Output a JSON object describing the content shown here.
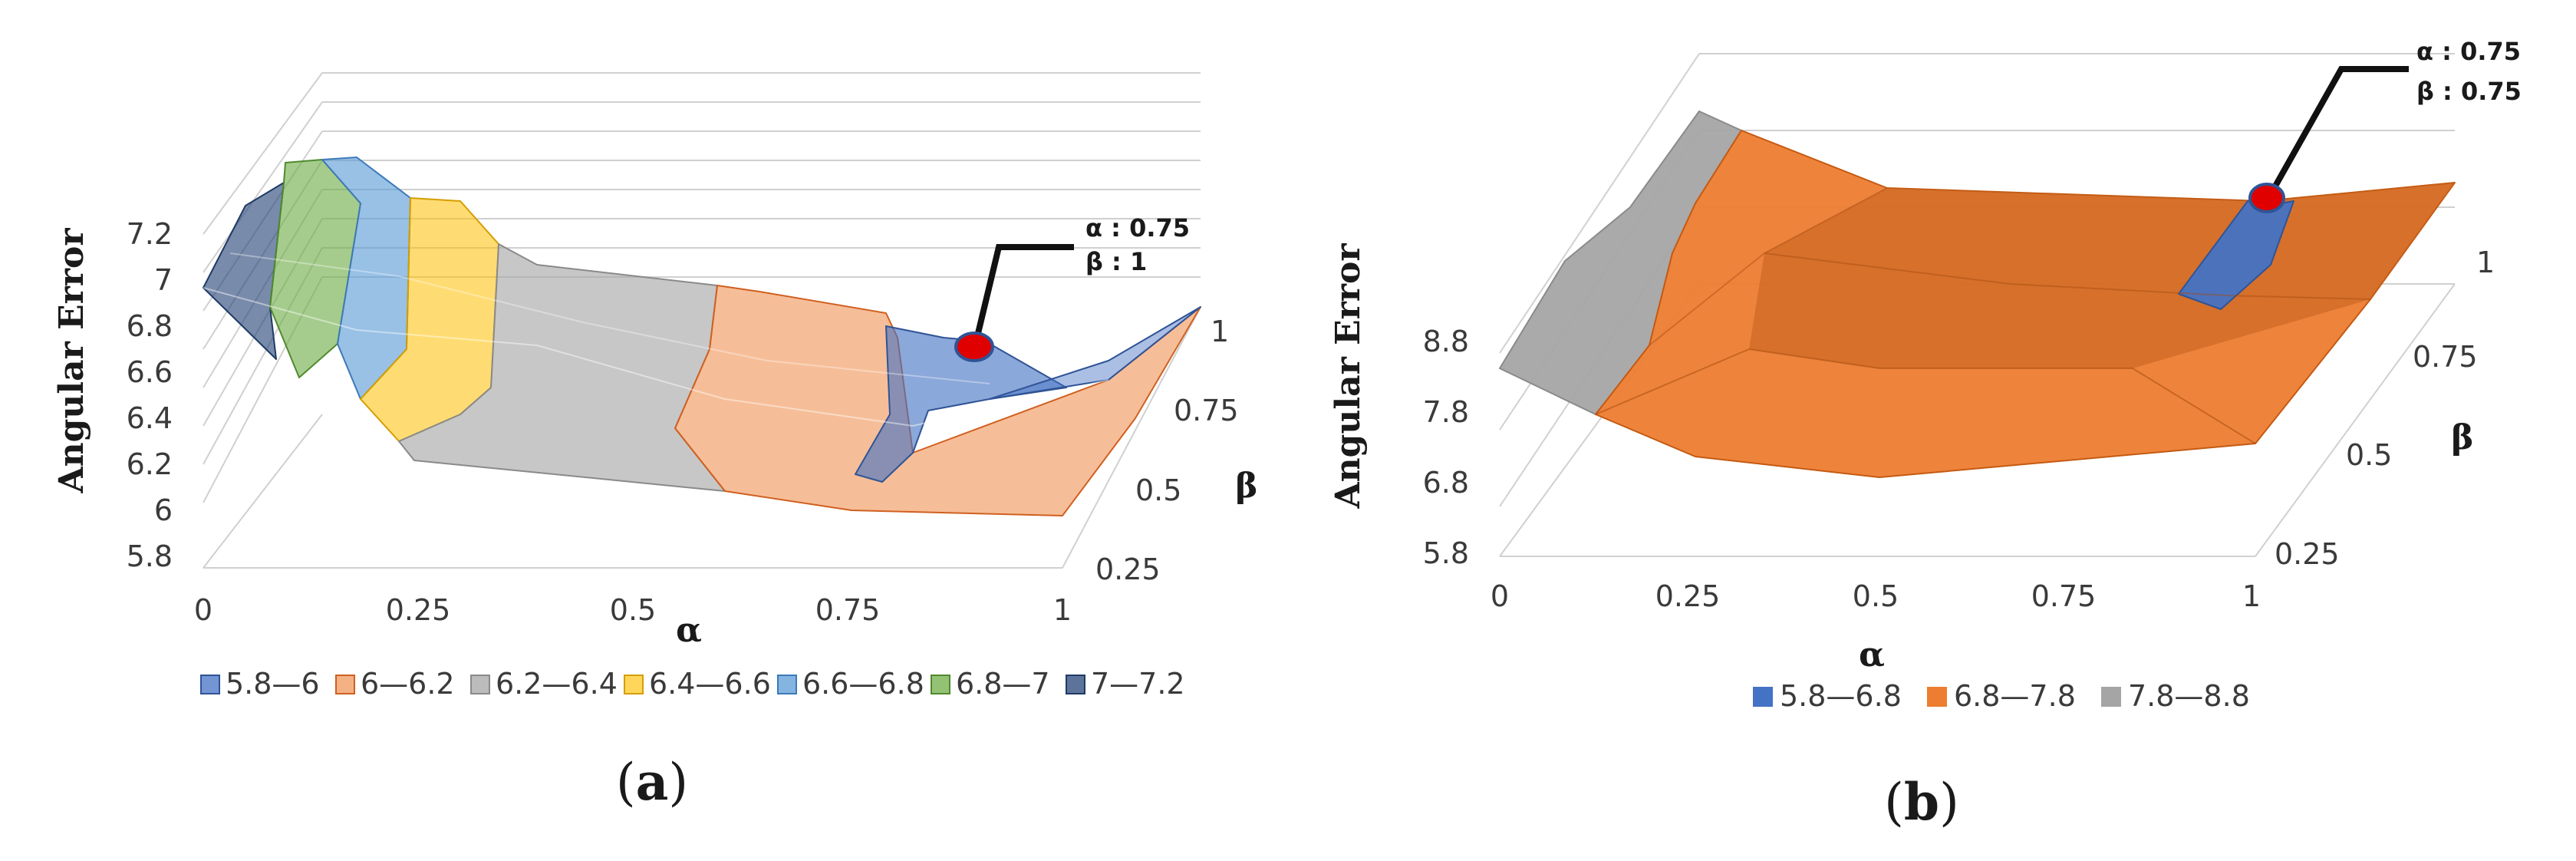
{
  "chart_data": [
    {
      "type": "surface",
      "caption": "a",
      "ylabel": "Angular Error",
      "xlabel": "α",
      "zlabel": "β",
      "alpha_ticks": [
        "0",
        "0.25",
        "0.5",
        "0.75",
        "1"
      ],
      "beta_ticks": [
        "0.25",
        "0.5",
        "0.75",
        "1"
      ],
      "error_ticks": [
        "5.8",
        "6",
        "6.2",
        "6.4",
        "6.6",
        "6.8",
        "7",
        "7.2"
      ],
      "error_range": [
        5.8,
        7.2
      ],
      "legend": [
        {
          "label": "5.8—6",
          "color": "#4472c4"
        },
        {
          "label": "6—6.2",
          "color": "#ed7d31"
        },
        {
          "label": "6.2—6.4",
          "color": "#a5a5a5"
        },
        {
          "label": "6.4—6.6",
          "color": "#ffc000"
        },
        {
          "label": "6.6—6.8",
          "color": "#5b9bd5"
        },
        {
          "label": "6.8—7",
          "color": "#70ad47"
        },
        {
          "label": "7—7.2",
          "color": "#264478"
        }
      ],
      "annotation": {
        "line1": "α : 0.75",
        "line2": "β : 1",
        "alpha": 0.75,
        "beta": 1,
        "error": 5.9
      }
    },
    {
      "type": "surface",
      "caption": "b",
      "ylabel": "Angular Error",
      "xlabel": "α",
      "zlabel": "β",
      "alpha_ticks": [
        "0",
        "0.25",
        "0.5",
        "0.75",
        "1"
      ],
      "beta_ticks": [
        "0.25",
        "0.5",
        "0.75",
        "1"
      ],
      "error_ticks": [
        "5.8",
        "6.8",
        "7.8",
        "8.8"
      ],
      "error_range": [
        5.8,
        8.8
      ],
      "legend": [
        {
          "label": "5.8—6.8",
          "color": "#4472c4"
        },
        {
          "label": "6.8—7.8",
          "color": "#ed7d31"
        },
        {
          "label": "7.8—8.8",
          "color": "#a5a5a5"
        }
      ],
      "annotation": {
        "line1": "α : 0.75",
        "line2": "β : 0.75",
        "alpha": 0.75,
        "beta": 0.75,
        "error": 6.6
      }
    }
  ]
}
